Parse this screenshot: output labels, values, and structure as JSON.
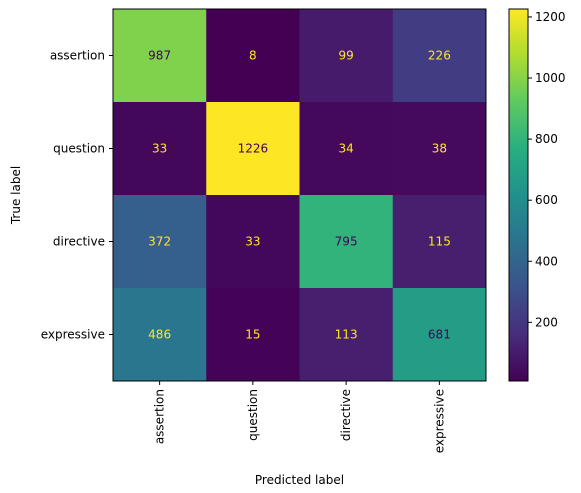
{
  "chart_data": {
    "type": "heatmap",
    "title": "",
    "xlabel": "Predicted label",
    "ylabel": "True label",
    "x_categories": [
      "assertion",
      "question",
      "directive",
      "expressive"
    ],
    "y_categories": [
      "assertion",
      "question",
      "directive",
      "expressive"
    ],
    "matrix": [
      [
        987,
        8,
        99,
        226
      ],
      [
        33,
        1226,
        34,
        38
      ],
      [
        372,
        33,
        795,
        115
      ],
      [
        486,
        15,
        113,
        681
      ]
    ],
    "colormap": "viridis",
    "value_range": [
      8,
      1226
    ],
    "colorbar_ticks": [
      "200",
      "400",
      "600",
      "800",
      "1000",
      "1200"
    ],
    "colorbar_tick_values": [
      200,
      400,
      600,
      800,
      1000,
      1200
    ],
    "text_colors": {
      "on_dark": "#fde725",
      "on_light": "#440154"
    },
    "grid": false
  }
}
